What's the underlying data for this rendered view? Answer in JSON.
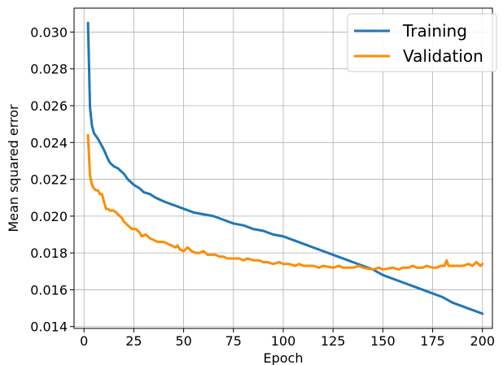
{
  "chart_data": {
    "type": "line",
    "title": "",
    "xlabel": "Epoch",
    "ylabel": "Mean squared error",
    "xlim": [
      -5,
      205
    ],
    "ylim": [
      0.0139,
      0.0313
    ],
    "x_ticks": [
      0,
      25,
      50,
      75,
      100,
      125,
      150,
      175,
      200
    ],
    "y_ticks": [
      0.014,
      0.016,
      0.018,
      0.02,
      0.022,
      0.024,
      0.026,
      0.028,
      0.03
    ],
    "x_tick_labels": [
      "0",
      "25",
      "50",
      "75",
      "100",
      "125",
      "150",
      "175",
      "200"
    ],
    "y_tick_labels": [
      "0.014",
      "0.016",
      "0.018",
      "0.020",
      "0.022",
      "0.024",
      "0.026",
      "0.028",
      "0.030"
    ],
    "grid": true,
    "legend_position": "top-right",
    "series": [
      {
        "name": "Training",
        "color": "#1f77b4",
        "points": [
          [
            2,
            0.0305
          ],
          [
            3,
            0.0259
          ],
          [
            4,
            0.0249
          ],
          [
            5,
            0.0245
          ],
          [
            7,
            0.0242
          ],
          [
            9,
            0.0238
          ],
          [
            10,
            0.0236
          ],
          [
            12,
            0.0231
          ],
          [
            13,
            0.0229
          ],
          [
            15,
            0.0227
          ],
          [
            17,
            0.0226
          ],
          [
            20,
            0.0223
          ],
          [
            22,
            0.022
          ],
          [
            25,
            0.0217
          ],
          [
            28,
            0.0215
          ],
          [
            30,
            0.0213
          ],
          [
            33,
            0.0212
          ],
          [
            36,
            0.021
          ],
          [
            40,
            0.0208
          ],
          [
            45,
            0.0206
          ],
          [
            50,
            0.0204
          ],
          [
            55,
            0.0202
          ],
          [
            60,
            0.0201
          ],
          [
            65,
            0.02
          ],
          [
            70,
            0.0198
          ],
          [
            75,
            0.0196
          ],
          [
            80,
            0.0195
          ],
          [
            85,
            0.0193
          ],
          [
            90,
            0.0192
          ],
          [
            95,
            0.019
          ],
          [
            100,
            0.0189
          ],
          [
            105,
            0.0187
          ],
          [
            110,
            0.0185
          ],
          [
            115,
            0.0183
          ],
          [
            120,
            0.0181
          ],
          [
            125,
            0.0179
          ],
          [
            130,
            0.0177
          ],
          [
            135,
            0.0175
          ],
          [
            140,
            0.0173
          ],
          [
            145,
            0.0171
          ],
          [
            150,
            0.0168
          ],
          [
            155,
            0.0166
          ],
          [
            160,
            0.0164
          ],
          [
            165,
            0.0162
          ],
          [
            170,
            0.016
          ],
          [
            175,
            0.0158
          ],
          [
            180,
            0.0156
          ],
          [
            185,
            0.0153
          ],
          [
            190,
            0.0151
          ],
          [
            195,
            0.0149
          ],
          [
            200,
            0.0147
          ]
        ]
      },
      {
        "name": "Validation",
        "color": "#ff8c00",
        "points": [
          [
            2,
            0.0244
          ],
          [
            3,
            0.0222
          ],
          [
            4,
            0.0217
          ],
          [
            5,
            0.0215
          ],
          [
            6,
            0.0214
          ],
          [
            7,
            0.0214
          ],
          [
            8,
            0.0212
          ],
          [
            9,
            0.0212
          ],
          [
            10,
            0.0208
          ],
          [
            11,
            0.0204
          ],
          [
            12,
            0.0204
          ],
          [
            13,
            0.0203
          ],
          [
            15,
            0.0203
          ],
          [
            17,
            0.0201
          ],
          [
            19,
            0.0199
          ],
          [
            20,
            0.0197
          ],
          [
            22,
            0.0195
          ],
          [
            24,
            0.0193
          ],
          [
            26,
            0.0193
          ],
          [
            28,
            0.0191
          ],
          [
            29,
            0.0189
          ],
          [
            31,
            0.019
          ],
          [
            33,
            0.0188
          ],
          [
            35,
            0.0187
          ],
          [
            37,
            0.0186
          ],
          [
            40,
            0.0186
          ],
          [
            42,
            0.0185
          ],
          [
            44,
            0.0184
          ],
          [
            46,
            0.0183
          ],
          [
            47,
            0.0184
          ],
          [
            48,
            0.0182
          ],
          [
            50,
            0.0181
          ],
          [
            52,
            0.0183
          ],
          [
            54,
            0.0181
          ],
          [
            56,
            0.018
          ],
          [
            58,
            0.018
          ],
          [
            60,
            0.0181
          ],
          [
            62,
            0.0179
          ],
          [
            64,
            0.0179
          ],
          [
            66,
            0.0179
          ],
          [
            68,
            0.0178
          ],
          [
            70,
            0.0178
          ],
          [
            72,
            0.0177
          ],
          [
            75,
            0.0177
          ],
          [
            78,
            0.0177
          ],
          [
            80,
            0.0176
          ],
          [
            82,
            0.0177
          ],
          [
            85,
            0.0176
          ],
          [
            88,
            0.0176
          ],
          [
            90,
            0.0175
          ],
          [
            92,
            0.0175
          ],
          [
            95,
            0.0174
          ],
          [
            98,
            0.0175
          ],
          [
            100,
            0.0174
          ],
          [
            103,
            0.0174
          ],
          [
            106,
            0.0173
          ],
          [
            108,
            0.0174
          ],
          [
            110,
            0.0173
          ],
          [
            115,
            0.0173
          ],
          [
            118,
            0.0172
          ],
          [
            120,
            0.0173
          ],
          [
            125,
            0.0172
          ],
          [
            128,
            0.0173
          ],
          [
            130,
            0.0172
          ],
          [
            135,
            0.0172
          ],
          [
            138,
            0.0173
          ],
          [
            140,
            0.0172
          ],
          [
            145,
            0.0171
          ],
          [
            148,
            0.0172
          ],
          [
            150,
            0.0171
          ],
          [
            155,
            0.0172
          ],
          [
            158,
            0.0171
          ],
          [
            160,
            0.0172
          ],
          [
            163,
            0.0172
          ],
          [
            165,
            0.0173
          ],
          [
            167,
            0.0172
          ],
          [
            170,
            0.0172
          ],
          [
            172,
            0.0173
          ],
          [
            175,
            0.0172
          ],
          [
            177,
            0.0172
          ],
          [
            179,
            0.0173
          ],
          [
            181,
            0.0173
          ],
          [
            182,
            0.0176
          ],
          [
            183,
            0.0173
          ],
          [
            185,
            0.0173
          ],
          [
            188,
            0.0173
          ],
          [
            190,
            0.0173
          ],
          [
            193,
            0.0174
          ],
          [
            195,
            0.0173
          ],
          [
            197,
            0.0175
          ],
          [
            199,
            0.0173
          ],
          [
            200,
            0.0174
          ]
        ]
      }
    ]
  }
}
